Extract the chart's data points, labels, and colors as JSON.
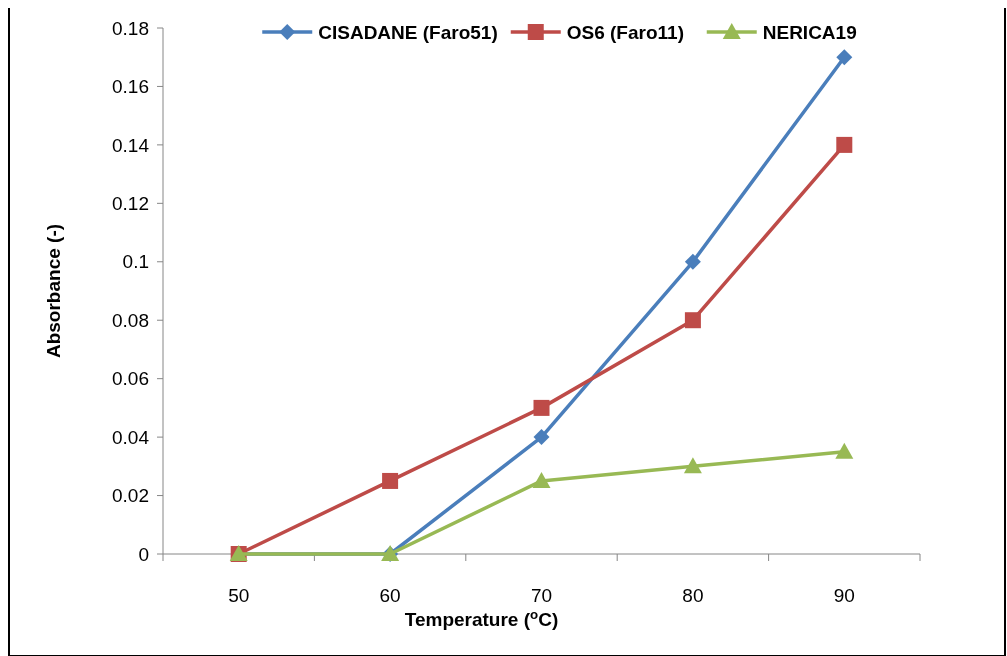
{
  "chart_data": {
    "type": "line",
    "xlabel": "Temperature ($^{o}$C)",
    "ylabel": "Absorbance (-)",
    "categories": [
      "50",
      "60",
      "70",
      "80",
      "90"
    ],
    "ylim": [
      0,
      0.18
    ],
    "yticks": [
      0,
      0.02,
      0.04,
      0.06,
      0.08,
      0.1,
      0.12,
      0.14,
      0.16,
      0.18
    ],
    "grid": false,
    "legend": "top",
    "line_style": "solid",
    "series": [
      {
        "name": "CISADANE (Faro51)",
        "color": "#4a7ebb",
        "marker": "diamond",
        "values": [
          0,
          0,
          0.04,
          0.1,
          0.17
        ]
      },
      {
        "name": "OS6 (Faro11)",
        "color": "#be4b48",
        "marker": "square",
        "values": [
          0,
          0.025,
          0.05,
          0.08,
          0.14
        ]
      },
      {
        "name": "NERICA19",
        "color": "#98b954",
        "marker": "triangle",
        "values": [
          0,
          0,
          0.025,
          0.03,
          0.035
        ]
      }
    ]
  }
}
